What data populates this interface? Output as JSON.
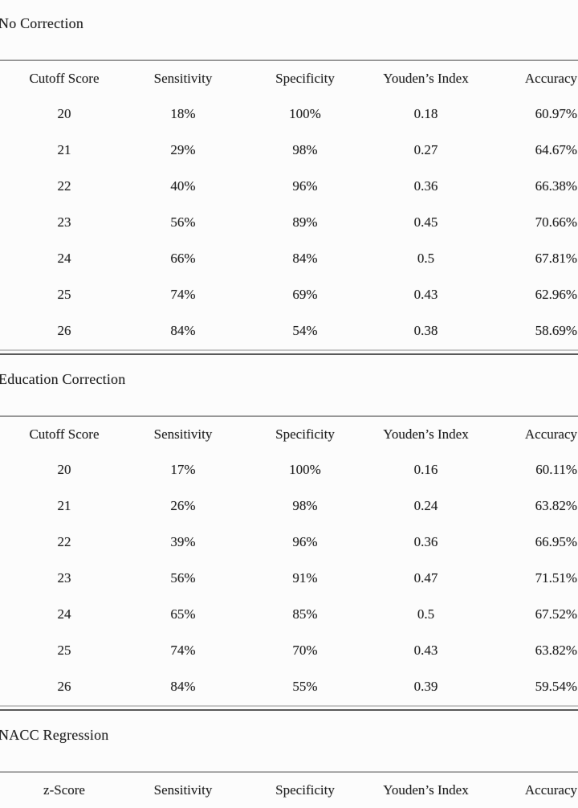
{
  "page": {
    "background": "#fcfcfc",
    "text_color": "#222222",
    "rule_color_light": "#c6c6c6",
    "rule_color_dark": "#5a5a5a"
  },
  "chart_data": [
    {
      "type": "table",
      "title": "No Correction",
      "columns": [
        "Cutoff Score",
        "Sensitivity",
        "Specificity",
        "Youden’s Index",
        "Accuracy"
      ],
      "rows": [
        [
          "20",
          "18%",
          "100%",
          "0.18",
          "60.97%"
        ],
        [
          "21",
          "29%",
          "98%",
          "0.27",
          "64.67%"
        ],
        [
          "22",
          "40%",
          "96%",
          "0.36",
          "66.38%"
        ],
        [
          "23",
          "56%",
          "89%",
          "0.45",
          "70.66%"
        ],
        [
          "24",
          "66%",
          "84%",
          "0.5",
          "67.81%"
        ],
        [
          "25",
          "74%",
          "69%",
          "0.43",
          "62.96%"
        ],
        [
          "26",
          "84%",
          "54%",
          "0.38",
          "58.69%"
        ]
      ]
    },
    {
      "type": "table",
      "title": "Education Correction",
      "columns": [
        "Cutoff Score",
        "Sensitivity",
        "Specificity",
        "Youden’s Index",
        "Accuracy"
      ],
      "rows": [
        [
          "20",
          "17%",
          "100%",
          "0.16",
          "60.11%"
        ],
        [
          "21",
          "26%",
          "98%",
          "0.24",
          "63.82%"
        ],
        [
          "22",
          "39%",
          "96%",
          "0.36",
          "66.95%"
        ],
        [
          "23",
          "56%",
          "91%",
          "0.47",
          "71.51%"
        ],
        [
          "24",
          "65%",
          "85%",
          "0.5",
          "67.52%"
        ],
        [
          "25",
          "74%",
          "70%",
          "0.43",
          "63.82%"
        ],
        [
          "26",
          "84%",
          "55%",
          "0.39",
          "59.54%"
        ]
      ]
    },
    {
      "type": "table",
      "title": "NACC Regression",
      "columns": [
        "z-Score",
        "Sensitivity",
        "Specificity",
        "Youden’s Index",
        "Accuracy"
      ],
      "rows": []
    }
  ]
}
